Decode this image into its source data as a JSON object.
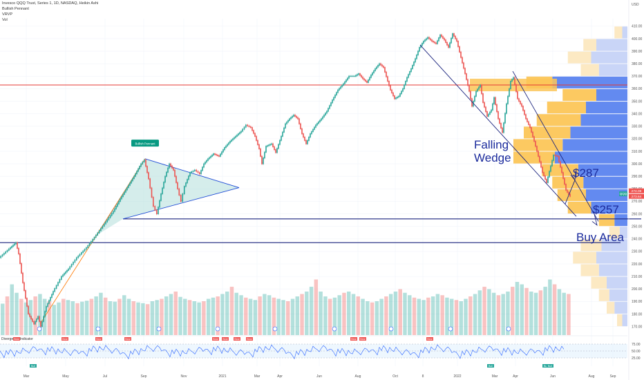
{
  "header": {
    "title": "Invesco QQQ Trust, Series 1, 1D, NASDAQ, Heikin Ashi",
    "indicator_1": "Bullish Pennant",
    "indicator_2": "VRVP",
    "indicator_3": "Vol"
  },
  "chart_data": {
    "type": "line",
    "symbol": "QQQ",
    "y_axis_label": "USD",
    "ylim": [
      167,
      416
    ],
    "y_ticks": [
      410,
      400,
      390,
      380,
      370,
      360,
      350,
      340,
      330,
      320,
      310,
      300,
      290,
      280,
      270,
      260,
      250,
      240,
      230,
      220,
      210,
      200,
      190,
      180,
      170
    ],
    "x_labels": [
      "Mar",
      "May",
      "Jul",
      "Sep",
      "Nov",
      "2021",
      "Mar",
      "Apr",
      "Jun",
      "Aug",
      "Oct",
      "8",
      "2022",
      "Mar",
      "Apr",
      "Jun",
      "Aug",
      "Sep"
    ],
    "price_labels": [
      "274.09",
      "273.64"
    ],
    "price_label_symbol": "QQQ",
    "price_series": {
      "name": "QQQ",
      "points": [
        [
          0,
          225
        ],
        [
          14,
          232
        ],
        [
          24,
          237
        ],
        [
          28,
          228
        ],
        [
          34,
          205
        ],
        [
          42,
          180
        ],
        [
          50,
          172
        ],
        [
          56,
          178
        ],
        [
          60,
          170
        ],
        [
          68,
          186
        ],
        [
          78,
          198
        ],
        [
          90,
          210
        ],
        [
          100,
          216
        ],
        [
          112,
          225
        ],
        [
          126,
          233
        ],
        [
          140,
          243
        ],
        [
          152,
          252
        ],
        [
          165,
          262
        ],
        [
          175,
          272
        ],
        [
          185,
          281
        ],
        [
          195,
          290
        ],
        [
          205,
          300
        ],
        [
          210,
          303
        ],
        [
          216,
          288
        ],
        [
          223,
          266
        ],
        [
          228,
          260
        ],
        [
          234,
          276
        ],
        [
          240,
          290
        ],
        [
          246,
          300
        ],
        [
          252,
          295
        ],
        [
          258,
          280
        ],
        [
          263,
          270
        ],
        [
          268,
          282
        ],
        [
          276,
          293
        ],
        [
          283,
          295
        ],
        [
          290,
          292
        ],
        [
          296,
          300
        ],
        [
          302,
          304
        ],
        [
          310,
          308
        ],
        [
          318,
          306
        ],
        [
          326,
          313
        ],
        [
          334,
          318
        ],
        [
          342,
          322
        ],
        [
          350,
          326
        ],
        [
          357,
          331
        ],
        [
          364,
          329
        ],
        [
          370,
          322
        ],
        [
          376,
          312
        ],
        [
          380,
          300
        ],
        [
          386,
          314
        ],
        [
          394,
          316
        ],
        [
          400,
          309
        ],
        [
          408,
          322
        ],
        [
          414,
          332
        ],
        [
          420,
          336
        ],
        [
          426,
          339
        ],
        [
          432,
          336
        ],
        [
          438,
          324
        ],
        [
          444,
          316
        ],
        [
          450,
          324
        ],
        [
          458,
          331
        ],
        [
          466,
          336
        ],
        [
          474,
          342
        ],
        [
          482,
          351
        ],
        [
          490,
          359
        ],
        [
          498,
          364
        ],
        [
          506,
          370
        ],
        [
          514,
          370
        ],
        [
          520,
          372
        ],
        [
          526,
          368
        ],
        [
          532,
          365
        ],
        [
          538,
          371
        ],
        [
          544,
          376
        ],
        [
          550,
          380
        ],
        [
          556,
          377
        ],
        [
          562,
          366
        ],
        [
          566,
          359
        ],
        [
          572,
          352
        ],
        [
          578,
          354
        ],
        [
          584,
          360
        ],
        [
          590,
          369
        ],
        [
          596,
          376
        ],
        [
          602,
          384
        ],
        [
          608,
          393
        ],
        [
          614,
          398
        ],
        [
          620,
          401
        ],
        [
          626,
          398
        ],
        [
          632,
          396
        ],
        [
          638,
          403
        ],
        [
          644,
          399
        ],
        [
          650,
          393
        ],
        [
          656,
          404
        ],
        [
          662,
          398
        ],
        [
          668,
          385
        ],
        [
          674,
          372
        ],
        [
          680,
          358
        ],
        [
          684,
          346
        ],
        [
          690,
          358
        ],
        [
          696,
          363
        ],
        [
          700,
          349
        ],
        [
          706,
          338
        ],
        [
          712,
          343
        ],
        [
          716,
          353
        ],
        [
          722,
          336
        ],
        [
          728,
          325
        ],
        [
          734,
          348
        ],
        [
          740,
          366
        ],
        [
          744,
          369
        ],
        [
          750,
          352
        ],
        [
          756,
          346
        ],
        [
          762,
          336
        ],
        [
          768,
          329
        ],
        [
          774,
          318
        ],
        [
          780,
          306
        ],
        [
          786,
          293
        ],
        [
          792,
          285
        ],
        [
          796,
          294
        ],
        [
          802,
          307
        ],
        [
          808,
          306
        ],
        [
          814,
          293
        ],
        [
          820,
          279
        ],
        [
          826,
          274
        ]
      ]
    },
    "volume_bars": [
      130,
      160,
      210,
      175,
      150,
      135,
      145,
      160,
      170,
      150,
      140,
      125,
      135,
      150,
      145,
      140,
      132,
      138,
      142,
      150,
      160,
      175,
      155,
      140,
      138,
      150,
      165,
      150,
      140,
      135,
      132,
      128,
      140,
      145,
      150,
      160,
      170,
      180,
      158,
      150,
      145,
      140,
      135,
      140,
      150,
      155,
      160,
      170,
      180,
      200,
      175,
      165,
      155,
      150,
      145,
      160,
      170,
      165,
      155,
      150,
      145,
      140,
      150,
      160,
      170,
      180,
      200,
      230,
      180,
      160,
      150,
      155,
      165,
      175,
      180,
      170,
      160,
      150,
      140,
      135,
      140,
      150,
      160,
      170,
      180,
      190,
      175,
      165,
      155,
      150,
      145,
      155,
      160,
      170,
      165,
      155,
      150,
      145,
      140,
      150,
      160,
      170,
      185,
      200,
      190,
      175,
      165,
      170,
      180,
      200,
      220,
      210,
      195,
      180,
      175,
      185,
      200,
      230,
      210,
      190,
      175,
      170
    ],
    "volume_profile": [
      {
        "price": 405,
        "buy": 15,
        "sell": 10
      },
      {
        "price": 395,
        "buy": 25,
        "sell": 60
      },
      {
        "price": 385,
        "buy": 45,
        "sell": 70
      },
      {
        "price": 375,
        "buy": 35,
        "sell": 55
      },
      {
        "price": 365,
        "buy": 50,
        "sell": 145
      },
      {
        "price": 355,
        "buy": 65,
        "sell": 60
      },
      {
        "price": 345,
        "buy": 75,
        "sell": 80
      },
      {
        "price": 335,
        "buy": 85,
        "sell": 90
      },
      {
        "price": 325,
        "buy": 90,
        "sell": 110
      },
      {
        "price": 315,
        "buy": 95,
        "sell": 125
      },
      {
        "price": 305,
        "buy": 80,
        "sell": 140
      },
      {
        "price": 295,
        "buy": 70,
        "sell": 95
      },
      {
        "price": 285,
        "buy": 60,
        "sell": 85
      },
      {
        "price": 275,
        "buy": 55,
        "sell": 80
      },
      {
        "price": 265,
        "buy": 45,
        "sell": 70
      },
      {
        "price": 255,
        "buy": 30,
        "sell": 25
      },
      {
        "price": 245,
        "buy": 20,
        "sell": 15
      },
      {
        "price": 235,
        "buy": 40,
        "sell": 50
      },
      {
        "price": 225,
        "buy": 45,
        "sell": 60
      },
      {
        "price": 215,
        "buy": 35,
        "sell": 55
      },
      {
        "price": 205,
        "buy": 30,
        "sell": 40
      },
      {
        "price": 195,
        "buy": 20,
        "sell": 35
      },
      {
        "price": 185,
        "buy": 15,
        "sell": 25
      },
      {
        "price": 175,
        "buy": 10,
        "sell": 10
      }
    ],
    "horizontal_lines": [
      {
        "price": 363,
        "color": "#e53935"
      },
      {
        "price": 256,
        "color": "#1a237e"
      },
      {
        "price": 237,
        "color": "#1a237e"
      }
    ],
    "annotations": {
      "pennant_label": "Bullish Pennant",
      "wedge_label_1": "Falling",
      "wedge_label_2": "Wedge",
      "target_1": "$287",
      "target_2": "$257",
      "buy_area": "Buy Area"
    },
    "oscillator": {
      "name": "Divergence Indicator",
      "ticks": [
        "75.00",
        "50.00",
        "25.00"
      ],
      "bear_labels": [
        "Bear",
        "Bear",
        "Bear",
        "Bear",
        "Bear",
        "Bear",
        "Bear",
        "Bear",
        "Bear",
        "Bear",
        "Bear"
      ],
      "bull_labels": [
        "Bull",
        "Bull",
        "Bull",
        "Bull"
      ]
    }
  },
  "colors": {
    "up": "#26a69a",
    "down": "#ef5350",
    "pennant_fill": "#b2dfdb",
    "pennant_line": "#1e4bd6",
    "trend_orange": "#ff7f0e",
    "wedge_line": "#1a237e",
    "vp_buy": "#fcc658",
    "vp_sell": "#5b84ef",
    "vp_buy_light": "#fce8c0",
    "vp_sell_light": "#c6d3f7"
  }
}
